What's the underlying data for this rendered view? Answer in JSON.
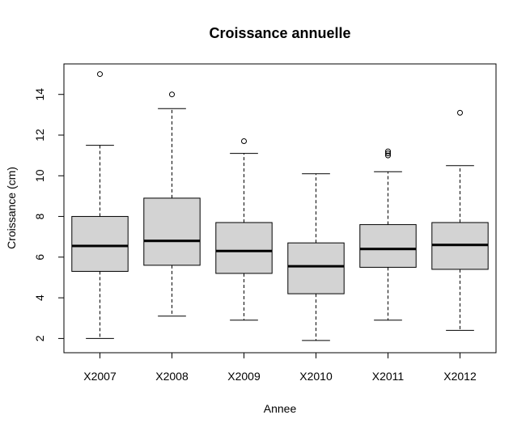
{
  "chart_data": {
    "type": "boxplot",
    "title": "Croissance annuelle",
    "xlabel": "Annee",
    "ylabel": "Croissance (cm)",
    "ylim": [
      1.3,
      15.5
    ],
    "yticks": [
      2,
      4,
      6,
      8,
      10,
      12,
      14
    ],
    "grid": false,
    "colors": {
      "box_fill": "#d3d3d3",
      "stroke": "#000000"
    },
    "series": [
      {
        "category": "X2007",
        "whisker_low": 2.0,
        "q1": 5.3,
        "median": 6.55,
        "q3": 8.0,
        "whisker_high": 11.5,
        "outliers": [
          15.0
        ]
      },
      {
        "category": "X2008",
        "whisker_low": 3.1,
        "q1": 5.6,
        "median": 6.8,
        "q3": 8.9,
        "whisker_high": 13.3,
        "outliers": [
          14.0
        ]
      },
      {
        "category": "X2009",
        "whisker_low": 2.9,
        "q1": 5.2,
        "median": 6.3,
        "q3": 7.7,
        "whisker_high": 11.1,
        "outliers": [
          11.7
        ]
      },
      {
        "category": "X2010",
        "whisker_low": 1.9,
        "q1": 4.2,
        "median": 5.55,
        "q3": 6.7,
        "whisker_high": 10.1,
        "outliers": []
      },
      {
        "category": "X2011",
        "whisker_low": 2.9,
        "q1": 5.5,
        "median": 6.4,
        "q3": 7.6,
        "whisker_high": 10.2,
        "outliers": [
          11.0,
          11.1,
          11.2
        ]
      },
      {
        "category": "X2012",
        "whisker_low": 2.4,
        "q1": 5.4,
        "median": 6.6,
        "q3": 7.7,
        "whisker_high": 10.5,
        "outliers": [
          13.1
        ]
      }
    ]
  }
}
